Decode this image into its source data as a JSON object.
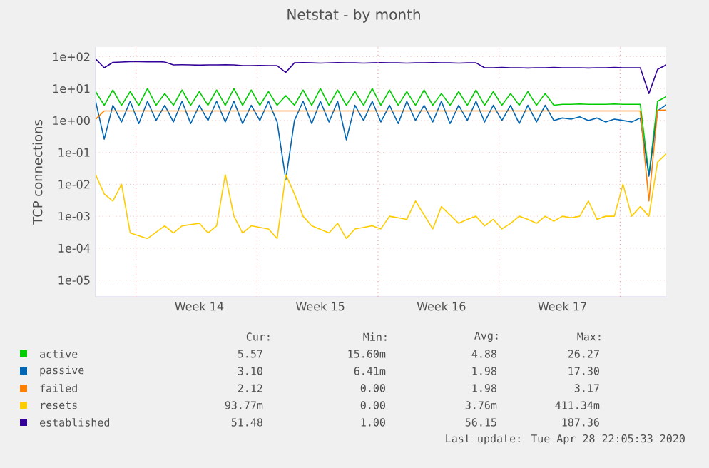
{
  "chart_data": {
    "type": "line",
    "title": "Netstat - by month",
    "ylabel": "TCP connections",
    "log": "y",
    "grid": "y",
    "legend": "bottom",
    "categories": [
      null,
      null,
      null,
      null,
      null,
      null,
      null,
      null,
      null,
      null,
      null,
      null,
      "Week 14",
      null,
      null,
      null,
      null,
      null,
      null,
      null,
      null,
      null,
      null,
      null,
      null,
      null,
      "Week 15",
      null,
      null,
      null,
      null,
      null,
      null,
      null,
      null,
      null,
      null,
      null,
      null,
      null,
      "Week 16",
      null,
      null,
      null,
      null,
      null,
      null,
      null,
      null,
      null,
      null,
      null,
      null,
      null,
      "Week 17",
      null,
      null,
      null,
      null,
      null,
      null,
      null,
      null,
      null,
      null,
      null,
      null
    ],
    "ylim": [
      3e-06,
      200
    ],
    "yticks": [
      {
        "value": 1e-05,
        "label": "1e-05"
      },
      {
        "value": 0.0001,
        "label": "1e-04"
      },
      {
        "value": 0.001,
        "label": "1e-03"
      },
      {
        "value": 0.01,
        "label": "1e-02"
      },
      {
        "value": 0.1,
        "label": "1e-01"
      },
      {
        "value": 1,
        "label": "1e+00"
      },
      {
        "value": 10,
        "label": "1e+01"
      },
      {
        "value": 100,
        "label": "1e+02"
      }
    ],
    "series": [
      {
        "name": "active",
        "color": "#00cc00",
        "values": [
          8,
          3,
          9,
          3,
          8,
          3,
          10,
          3,
          7,
          3,
          9,
          3,
          8,
          3,
          9,
          3,
          10,
          3,
          9,
          3,
          8,
          3,
          6,
          3,
          9,
          3,
          10,
          3,
          9,
          3,
          8,
          3,
          10,
          3,
          9,
          3,
          8,
          3,
          9,
          3,
          7,
          3,
          8,
          3,
          9,
          3,
          8,
          3,
          7,
          3,
          8,
          3,
          7,
          3,
          3.2,
          3.2,
          3.3,
          3.2,
          3.2,
          3.2,
          3.3,
          3.2,
          3.2,
          3.2,
          0.02,
          4,
          5.57
        ]
      },
      {
        "name": "passive",
        "color": "#0066b3",
        "values": [
          4,
          0.26,
          3,
          0.9,
          4,
          0.8,
          4,
          1,
          3,
          0.9,
          4,
          0.8,
          3,
          1,
          4,
          0.9,
          4,
          0.8,
          3,
          1,
          4,
          0.9,
          0.014,
          1,
          4,
          0.8,
          4,
          0.9,
          4,
          0.25,
          3,
          1,
          4,
          0.9,
          3,
          0.8,
          4,
          1,
          3,
          0.9,
          4,
          0.8,
          3,
          1,
          4,
          0.9,
          3,
          1,
          3,
          0.8,
          3,
          0.9,
          3,
          1,
          1.2,
          1.1,
          1.3,
          1,
          1.2,
          0.9,
          1.1,
          1,
          0.9,
          1.2,
          0.018,
          2,
          3.1
        ]
      },
      {
        "name": "failed",
        "color": "#ff8000",
        "values": [
          1.1,
          2,
          2,
          2,
          2,
          2,
          2,
          2,
          2,
          2,
          2,
          2,
          2,
          2,
          2,
          2,
          2,
          2,
          2,
          2,
          2,
          2,
          2,
          2,
          2,
          2,
          2,
          2,
          2,
          2,
          2,
          2,
          2,
          2,
          2,
          2,
          2,
          2,
          2,
          2,
          2,
          2,
          2,
          2,
          2,
          2,
          2,
          2,
          2,
          2,
          2,
          2,
          2,
          2,
          2,
          2,
          2,
          2,
          2,
          2,
          2,
          2,
          2,
          2,
          0.003,
          2.1,
          2.12
        ]
      },
      {
        "name": "resets",
        "color": "#ffcc00",
        "values": [
          0.02,
          0.005,
          0.003,
          0.01,
          0.0003,
          null,
          0.0002,
          null,
          0.0005,
          0.0003,
          0.0005,
          null,
          0.0006,
          0.0003,
          0.0005,
          0.02,
          0.001,
          0.0003,
          0.0005,
          null,
          0.0004,
          0.0002,
          0.02,
          0.005,
          0.001,
          0.0005,
          null,
          0.0003,
          0.0006,
          0.0002,
          0.0004,
          null,
          0.0005,
          0.0004,
          0.001,
          null,
          0.0008,
          0.003,
          null,
          0.0004,
          0.002,
          null,
          0.0006,
          0.0008,
          0.001,
          0.0005,
          0.0008,
          0.0004,
          0.0006,
          0.001,
          0.0008,
          0.0006,
          0.001,
          0.0007,
          0.001,
          0.0009,
          0.001,
          0.003,
          0.0008,
          0.001,
          0.001,
          0.01,
          0.001,
          0.002,
          0.001,
          0.05,
          0.09
        ]
      },
      {
        "name": "established",
        "color": "#330099",
        "values": [
          85,
          45,
          66,
          68,
          70,
          70,
          69,
          70,
          68,
          55,
          56,
          55,
          54,
          55,
          55,
          56,
          55,
          52,
          52,
          53,
          52,
          52,
          32,
          64,
          65,
          64,
          63,
          64,
          65,
          64,
          64,
          63,
          64,
          65,
          64,
          64,
          63,
          64,
          64,
          65,
          64,
          64,
          63,
          64,
          64,
          45,
          45,
          46,
          45,
          45,
          44,
          45,
          45,
          46,
          45,
          45,
          45,
          44,
          45,
          45,
          46,
          45,
          45,
          45,
          7,
          40,
          55
        ]
      }
    ],
    "annotations": [
      "Cur:",
      "Min:",
      "Avg:",
      "Max:",
      "5.57",
      "15.60m",
      "4.88",
      "26.27",
      "3.10",
      "6.41m",
      "1.98",
      "17.30",
      "2.12",
      "0.00",
      "1.98",
      "3.17",
      "93.77m",
      "0.00",
      "3.76m",
      "411.34m",
      "51.48",
      "1.00",
      "56.15",
      "187.36",
      "Last update: Tue Apr 28 22:05:33 2020"
    ]
  }
}
